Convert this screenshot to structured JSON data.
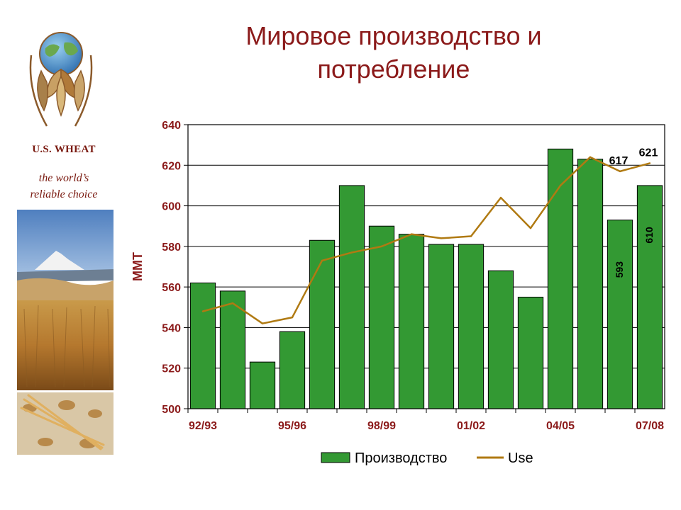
{
  "brand": {
    "name": "U.S. WHEAT",
    "tagline_line1": "the world’s",
    "tagline_line2": "reliable choice"
  },
  "slide": {
    "title": "Мировое производство и потребление"
  },
  "colors": {
    "title": "#8b1a1a",
    "bar": "#339933",
    "line": "#b07a12",
    "axis_label": "#8b1a1a"
  },
  "chart_data": {
    "type": "bar",
    "title": "",
    "xlabel": "",
    "ylabel": "MMT",
    "ylim": [
      500,
      640
    ],
    "yticks": [
      500,
      520,
      540,
      560,
      580,
      600,
      620,
      640
    ],
    "grid": true,
    "legend_position": "bottom",
    "categories": [
      "92/93",
      "93/94",
      "94/95",
      "95/96",
      "96/97",
      "97/98",
      "98/99",
      "99/00",
      "00/01",
      "01/02",
      "02/03",
      "03/04",
      "04/05",
      "05/06",
      "06/07",
      "07/08"
    ],
    "x_tick_labels": [
      "92/93",
      "",
      "",
      "95/96",
      "",
      "",
      "98/99",
      "",
      "",
      "01/02",
      "",
      "",
      "04/05",
      "",
      "",
      "07/08"
    ],
    "series": [
      {
        "name": "Производство",
        "kind": "bar",
        "values": [
          562,
          558,
          523,
          538,
          583,
          610,
          590,
          586,
          581,
          581,
          568,
          555,
          628,
          623,
          593,
          610
        ]
      },
      {
        "name": "Use",
        "kind": "line",
        "values": [
          548,
          552,
          542,
          545,
          573,
          577,
          580,
          586,
          584,
          585,
          604,
          589,
          610,
          624,
          617,
          621
        ]
      }
    ],
    "annotations": [
      {
        "text": "617",
        "series": "Use",
        "category": "06/07"
      },
      {
        "text": "621",
        "series": "Use",
        "category": "07/08"
      },
      {
        "text": "593",
        "series": "Производство",
        "category": "06/07",
        "rotated": true
      },
      {
        "text": "610",
        "series": "Производство",
        "category": "07/08",
        "rotated": true
      }
    ]
  }
}
